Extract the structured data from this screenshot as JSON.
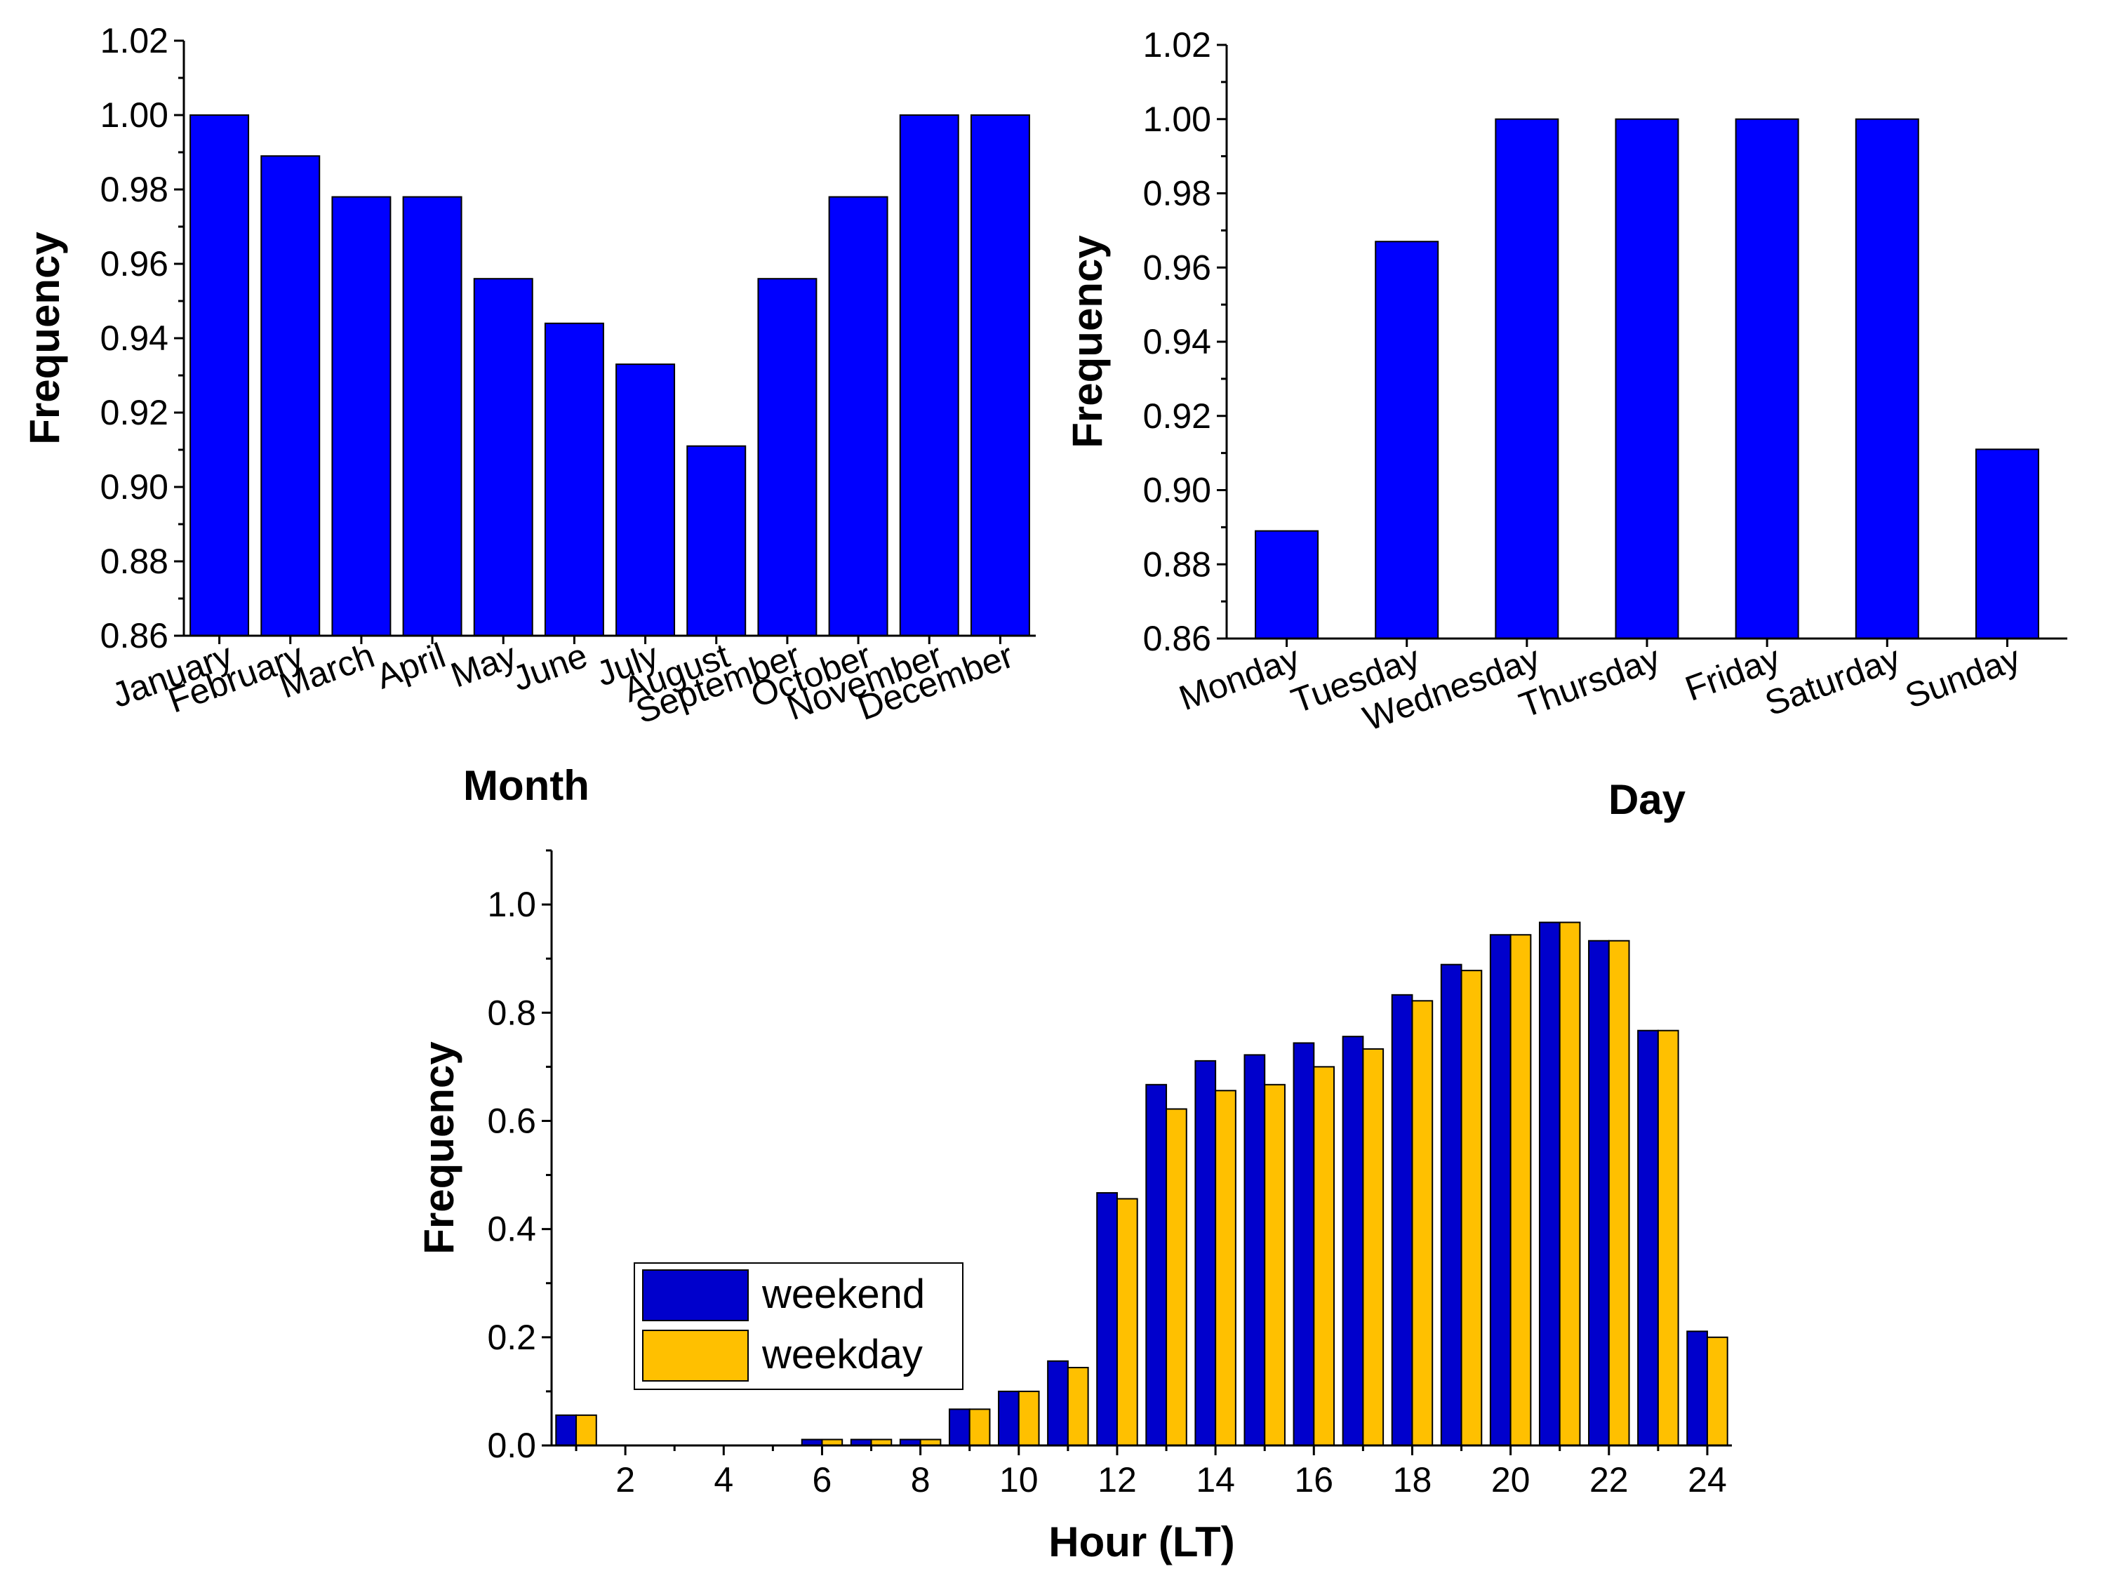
{
  "colors": {
    "month_bar": "#0000FF",
    "day_bar": "#0000FF",
    "weekend": "#0000CC",
    "weekday": "#FFC000"
  },
  "chart_data": [
    {
      "type": "bar",
      "categories": [
        "January",
        "February",
        "March",
        "April",
        "May",
        "June",
        "July",
        "August",
        "September",
        "October",
        "November",
        "December"
      ],
      "values": [
        1.0,
        0.989,
        0.978,
        0.978,
        0.956,
        0.944,
        0.933,
        0.911,
        0.956,
        0.978,
        1.0,
        1.0
      ],
      "xlabel": "Month",
      "ylabel": "Frequency",
      "ylim": [
        0.86,
        1.02
      ],
      "yticks": [
        "0.86",
        "0.88",
        "0.90",
        "0.92",
        "0.94",
        "0.96",
        "0.98",
        "1.00",
        "1.02"
      ]
    },
    {
      "type": "bar",
      "categories": [
        "Monday",
        "Tuesday",
        "Wednesday",
        "Thursday",
        "Friday",
        "Saturday",
        "Sunday"
      ],
      "values": [
        0.889,
        0.967,
        1.0,
        1.0,
        1.0,
        1.0,
        0.911
      ],
      "xlabel": "Day",
      "ylabel": "Frequency",
      "ylim": [
        0.86,
        1.02
      ],
      "yticks": [
        "0.86",
        "0.88",
        "0.90",
        "0.92",
        "0.94",
        "0.96",
        "0.98",
        "1.00",
        "1.02"
      ]
    },
    {
      "type": "bar",
      "x": [
        1,
        2,
        3,
        4,
        5,
        6,
        7,
        8,
        9,
        10,
        11,
        12,
        13,
        14,
        15,
        16,
        17,
        18,
        19,
        20,
        21,
        22,
        23,
        24
      ],
      "series": [
        {
          "name": "weekend",
          "values": [
            0.056,
            0,
            0,
            0,
            0,
            0.011,
            0.011,
            0.011,
            0.067,
            0.1,
            0.156,
            0.467,
            0.667,
            0.711,
            0.722,
            0.744,
            0.756,
            0.833,
            0.889,
            0.944,
            0.967,
            0.933,
            0.767,
            0.211
          ]
        },
        {
          "name": "weekday",
          "values": [
            0.056,
            0,
            0,
            0,
            0,
            0.011,
            0.011,
            0.011,
            0.067,
            0.1,
            0.144,
            0.456,
            0.622,
            0.656,
            0.667,
            0.7,
            0.733,
            0.822,
            0.878,
            0.944,
            0.967,
            0.933,
            0.767,
            0.2
          ]
        }
      ],
      "xlabel": "Hour (LT)",
      "ylabel": "Frequency",
      "xlim": [
        0.5,
        24.5
      ],
      "ylim": [
        0,
        1.1
      ],
      "xticks": [
        "2",
        "4",
        "6",
        "8",
        "10",
        "12",
        "14",
        "16",
        "18",
        "20",
        "22",
        "24"
      ],
      "yticks": [
        "0.0",
        "0.2",
        "0.4",
        "0.6",
        "0.8",
        "1.0"
      ],
      "legend": "center-left"
    }
  ]
}
